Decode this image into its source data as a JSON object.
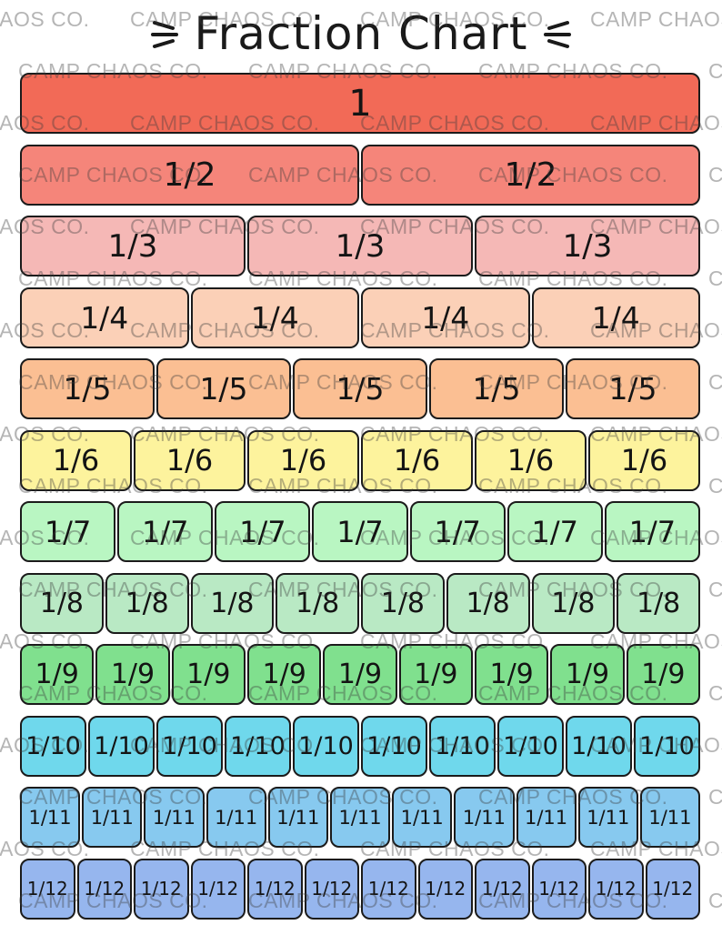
{
  "title": "Fraction Chart",
  "watermark_text": "CAMP CHAOS CO.",
  "rows": [
    {
      "label": "1",
      "count": 1,
      "color": "#f26a57"
    },
    {
      "label": "1/2",
      "count": 2,
      "color": "#f5857a"
    },
    {
      "label": "1/3",
      "count": 3,
      "color": "#f5b8b6"
    },
    {
      "label": "1/4",
      "count": 4,
      "color": "#fbd0b7"
    },
    {
      "label": "1/5",
      "count": 5,
      "color": "#fbbf93"
    },
    {
      "label": "1/6",
      "count": 6,
      "color": "#fdf39d"
    },
    {
      "label": "1/7",
      "count": 7,
      "color": "#b9f6c2"
    },
    {
      "label": "1/8",
      "count": 8,
      "color": "#b9e9c4"
    },
    {
      "label": "1/9",
      "count": 9,
      "color": "#80e08e"
    },
    {
      "label": "1/10",
      "count": 10,
      "color": "#6fd8ec"
    },
    {
      "label": "1/11",
      "count": 11,
      "color": "#87c9ef"
    },
    {
      "label": "1/12",
      "count": 12,
      "color": "#96b6ee"
    }
  ]
}
